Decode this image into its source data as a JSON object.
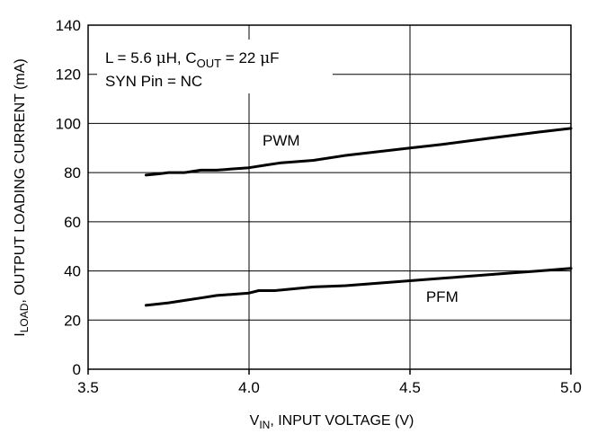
{
  "chart_data": {
    "type": "line",
    "title": "",
    "xlabel": {
      "main": "V",
      "sub": "IN",
      "rest": ", INPUT VOLTAGE (V)"
    },
    "ylabel": {
      "main": "I",
      "sub": "LOAD",
      "rest": ", OUTPUT LOADING CURRENT (mA)"
    },
    "xlim": [
      3.5,
      5.0
    ],
    "ylim": [
      0,
      140
    ],
    "xticks": [
      3.5,
      4.0,
      4.5,
      5.0
    ],
    "xtick_labels": [
      "3.5",
      "4.0",
      "4.5",
      "5.0"
    ],
    "yticks": [
      0,
      20,
      40,
      60,
      80,
      100,
      120,
      140
    ],
    "ytick_labels": [
      "0",
      "20",
      "40",
      "60",
      "80",
      "100",
      "120",
      "140"
    ],
    "grid": true,
    "annotation": {
      "line1": {
        "a": "L = 5.6 ",
        "mu1": "μ",
        "b": "H, C",
        "sub": "OUT",
        "c": " = 22 ",
        "mu2": "μ",
        "d": "F"
      },
      "line2": "SYN Pin = NC"
    },
    "series": [
      {
        "name": "PWM",
        "x": [
          3.68,
          3.72,
          3.75,
          3.8,
          3.85,
          3.9,
          3.95,
          4.0,
          4.05,
          4.1,
          4.2,
          4.3,
          4.4,
          4.5,
          4.6,
          4.75,
          4.9,
          5.0
        ],
        "y": [
          79,
          79.5,
          80,
          80,
          81,
          81,
          81.5,
          82,
          83,
          84,
          85,
          87,
          88.5,
          90,
          91.5,
          94,
          96.5,
          98
        ]
      },
      {
        "name": "PFM",
        "x": [
          3.68,
          3.75,
          3.8,
          3.85,
          3.9,
          3.95,
          4.0,
          4.03,
          4.08,
          4.12,
          4.2,
          4.3,
          4.4,
          4.5,
          4.6,
          4.7,
          4.8,
          4.9,
          5.0
        ],
        "y": [
          26,
          27,
          28,
          29,
          30,
          30.5,
          31,
          32,
          32,
          32.5,
          33.5,
          34,
          35,
          36,
          37,
          38,
          39,
          40,
          41
        ]
      }
    ],
    "series_label_positions": [
      {
        "name": "PWM",
        "x": 4.1,
        "y": 91
      },
      {
        "name": "PFM",
        "x": 4.6,
        "y": 27.5
      }
    ]
  }
}
